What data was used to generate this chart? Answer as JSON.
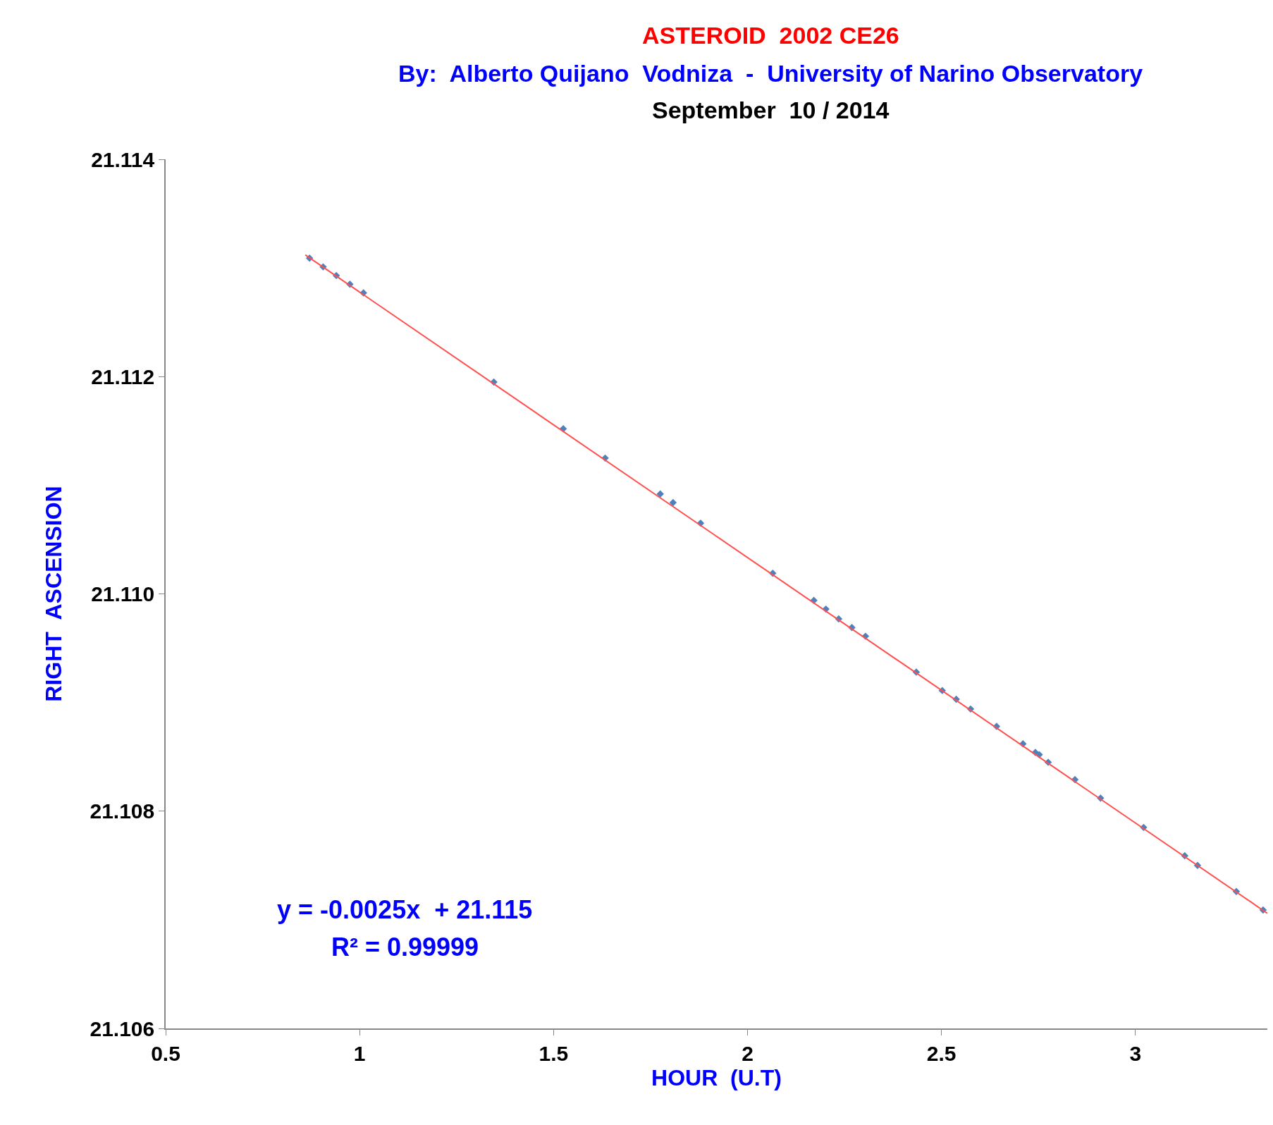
{
  "chart_data": {
    "type": "scatter",
    "title": "ASTEROID  2002 CE26",
    "subtitle": "By:  Alberto Quijano  Vodniza  -  University of Narino Observatory",
    "xlabel": "HOUR  (U.T)",
    "ylabel": "RIGHT  ASCENSION",
    "annotations": [
      "September  10 / 2014",
      "y = -0.0025x  + 21.115",
      "R² = 0.99999"
    ],
    "xlim": [
      0.5,
      3.34
    ],
    "xticks": [
      0.5,
      1,
      1.5,
      2,
      2.5,
      3
    ],
    "ylim": [
      21.106,
      21.114
    ],
    "yticks": [
      {
        "value": 21.106,
        "label": "21.106"
      },
      {
        "value": 21.108,
        "label": "21.108"
      },
      {
        "value": 21.11,
        "label": "21.110"
      },
      {
        "value": 21.112,
        "label": "21.112"
      },
      {
        "value": 21.114,
        "label": "21.114"
      }
    ],
    "series": [
      {
        "marker": "diamond",
        "color": "#4f81bd",
        "x": [
          0.871,
          0.906,
          0.94,
          0.975,
          1.01,
          1.346,
          1.525,
          1.633,
          1.775,
          1.808,
          1.879,
          2.065,
          2.171,
          2.202,
          2.235,
          2.269,
          2.304,
          2.435,
          2.502,
          2.538,
          2.575,
          2.642,
          2.71,
          2.742,
          2.752,
          2.775,
          2.844,
          2.91,
          3.021,
          3.127,
          3.16,
          3.26,
          3.329
        ],
        "values": [
          21.11309,
          21.11301,
          21.11293,
          21.11285,
          21.11277,
          21.11195,
          21.11152,
          21.11125,
          21.11092,
          21.11084,
          21.11065,
          21.11019,
          21.10994,
          21.10986,
          21.10977,
          21.10969,
          21.10961,
          21.10928,
          21.10911,
          21.10903,
          21.10894,
          21.10878,
          21.10862,
          21.10854,
          21.10852,
          21.10845,
          21.10829,
          21.10812,
          21.10785,
          21.10759,
          21.1075,
          21.10726,
          21.10709
        ]
      },
      {
        "type": "line",
        "marker": "none",
        "line_style": "solid",
        "color": "#ff5050",
        "x": [
          0.86,
          3.34
        ],
        "values": [
          21.11312,
          21.10706
        ]
      }
    ]
  }
}
